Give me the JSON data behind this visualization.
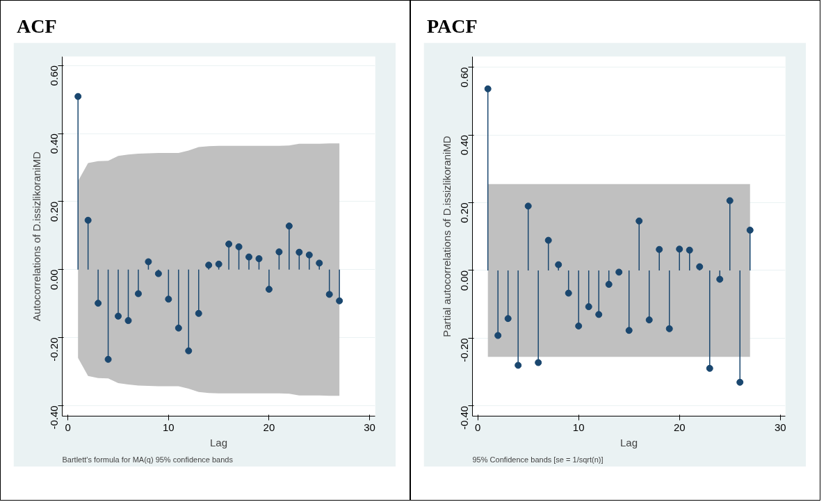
{
  "chart_data": [
    {
      "type": "lollipop",
      "title": "ACF",
      "xlabel": "Lag",
      "ylabel": "Autocorrelations of D.issizlikoraniMD",
      "annotations": [
        "Bartlett's formula for MA(q) 95% confidence bands"
      ],
      "x": [
        1,
        2,
        3,
        4,
        5,
        6,
        7,
        8,
        9,
        10,
        11,
        12,
        13,
        14,
        15,
        16,
        17,
        18,
        19,
        20,
        21,
        22,
        23,
        24,
        25,
        26,
        27
      ],
      "series": [
        {
          "color": "#1a476f",
          "values": [
            0.509,
            0.145,
            -0.099,
            -0.264,
            -0.137,
            -0.15,
            -0.071,
            0.023,
            -0.012,
            -0.087,
            -0.172,
            -0.239,
            -0.129,
            0.013,
            0.016,
            0.075,
            0.067,
            0.037,
            0.032,
            -0.058,
            0.052,
            0.128,
            0.051,
            0.043,
            0.019,
            -0.073,
            -0.092
          ],
          "upper": [
            0.26,
            0.313,
            0.319,
            0.32,
            0.334,
            0.338,
            0.341,
            0.342,
            0.343,
            0.343,
            0.343,
            0.35,
            0.36,
            0.363,
            0.364,
            0.364,
            0.364,
            0.364,
            0.364,
            0.364,
            0.364,
            0.365,
            0.37,
            0.37,
            0.37,
            0.371,
            0.371
          ],
          "lower": [
            -0.26,
            -0.313,
            -0.319,
            -0.32,
            -0.334,
            -0.338,
            -0.341,
            -0.342,
            -0.343,
            -0.343,
            -0.343,
            -0.35,
            -0.36,
            -0.363,
            -0.364,
            -0.364,
            -0.364,
            -0.364,
            -0.364,
            -0.364,
            -0.364,
            -0.365,
            -0.37,
            -0.37,
            -0.37,
            -0.371,
            -0.371
          ]
        }
      ],
      "xlim": [
        -0.57,
        30.55
      ],
      "ylim": [
        -0.431,
        0.626
      ],
      "xticks": [
        0,
        10,
        20,
        30
      ],
      "yticks": [
        {
          "value": -0.4,
          "label": "-0.40"
        },
        {
          "value": -0.2,
          "label": "-0.20"
        },
        {
          "value": 0,
          "label": "0.00"
        },
        {
          "value": 0.2,
          "label": "0.20"
        },
        {
          "value": 0.4,
          "label": "0.40"
        },
        {
          "value": 0.6,
          "label": "0.60"
        }
      ],
      "grid": "y",
      "marker": "circle"
    },
    {
      "type": "lollipop",
      "title": "PACF",
      "xlabel": "Lag",
      "ylabel": "Partial autocorrelations of D.issizlikoraniMD",
      "annotations": [
        "95% Confidence bands [se = 1/sqrt(n)]"
      ],
      "x": [
        1,
        2,
        3,
        4,
        5,
        6,
        7,
        8,
        9,
        10,
        11,
        12,
        13,
        14,
        15,
        16,
        17,
        18,
        19,
        20,
        21,
        22,
        23,
        24,
        25,
        26,
        27
      ],
      "series": [
        {
          "color": "#1a476f",
          "values": [
            0.536,
            -0.192,
            -0.142,
            -0.28,
            0.19,
            -0.272,
            0.089,
            0.017,
            -0.067,
            -0.164,
            -0.107,
            -0.13,
            -0.041,
            -0.005,
            -0.177,
            0.146,
            -0.146,
            0.062,
            -0.172,
            0.063,
            0.06,
            0.011,
            -0.289,
            -0.026,
            0.206,
            -0.33,
            0.119
          ],
          "upper": [
            0.255,
            0.255,
            0.255,
            0.255,
            0.255,
            0.255,
            0.255,
            0.255,
            0.255,
            0.255,
            0.255,
            0.255,
            0.255,
            0.255,
            0.255,
            0.255,
            0.255,
            0.255,
            0.255,
            0.255,
            0.255,
            0.255,
            0.255,
            0.255,
            0.255,
            0.255,
            0.255
          ],
          "lower": [
            -0.255,
            -0.255,
            -0.255,
            -0.255,
            -0.255,
            -0.255,
            -0.255,
            -0.255,
            -0.255,
            -0.255,
            -0.255,
            -0.255,
            -0.255,
            -0.255,
            -0.255,
            -0.255,
            -0.255,
            -0.255,
            -0.255,
            -0.255,
            -0.255,
            -0.255,
            -0.255,
            -0.255,
            -0.255,
            -0.255,
            -0.255
          ]
        }
      ],
      "xlim": [
        -0.53,
        30.5
      ],
      "ylim": [
        -0.43,
        0.631
      ],
      "xticks": [
        0,
        10,
        20,
        30
      ],
      "yticks": [
        {
          "value": -0.4,
          "label": "-0.40"
        },
        {
          "value": -0.2,
          "label": "-0.20"
        },
        {
          "value": 0,
          "label": "0.00"
        },
        {
          "value": 0.2,
          "label": "0.20"
        },
        {
          "value": 0.4,
          "label": "0.40"
        },
        {
          "value": 0.6,
          "label": "0.60"
        }
      ],
      "grid": "y",
      "marker": "circle"
    }
  ]
}
